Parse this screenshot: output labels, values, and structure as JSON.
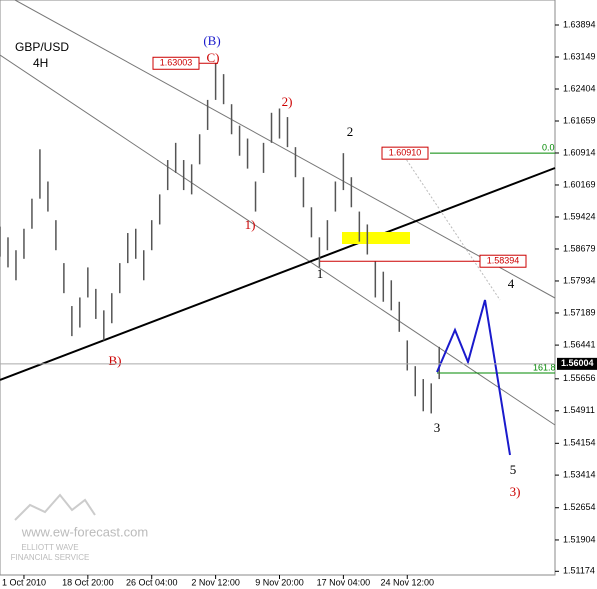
{
  "chart_data": {
    "type": "hilo",
    "title": "GBP/USD",
    "subtitle": "4H",
    "x": [
      0,
      2,
      4,
      6,
      8,
      10,
      12,
      14,
      16,
      18,
      20,
      22,
      24,
      26,
      28,
      30,
      32,
      34,
      36,
      38,
      40,
      42,
      44,
      46,
      48,
      50,
      52,
      54,
      56,
      58,
      60,
      62,
      64,
      66,
      68,
      70,
      72,
      74,
      76,
      78,
      80,
      82,
      84,
      86,
      88,
      90,
      92,
      94,
      96,
      98,
      100,
      102,
      104,
      106,
      108,
      110
    ],
    "high": [
      1.592,
      1.5895,
      1.5865,
      1.5915,
      1.5985,
      1.61,
      1.6025,
      1.5935,
      1.5835,
      1.5735,
      1.5755,
      1.5825,
      1.5775,
      1.5725,
      1.5765,
      1.5835,
      1.5905,
      1.5915,
      1.5865,
      1.5935,
      1.5995,
      1.6075,
      1.6115,
      1.6075,
      1.6065,
      1.6135,
      1.6215,
      1.63,
      1.6275,
      1.6205,
      1.6155,
      1.6125,
      1.6025,
      1.6115,
      1.6185,
      1.6195,
      1.6175,
      1.6105,
      1.6035,
      1.5965,
      1.5895,
      1.5935,
      1.6025,
      1.6091,
      1.6035,
      1.5955,
      1.5925,
      1.5839,
      1.5815,
      1.5795,
      1.5745,
      1.5655,
      1.5595,
      1.5565,
      1.5555,
      1.564
    ],
    "low": [
      1.585,
      1.5825,
      1.5795,
      1.5845,
      1.5915,
      1.5985,
      1.5955,
      1.5865,
      1.5765,
      1.5665,
      1.5685,
      1.5755,
      1.5705,
      1.5655,
      1.5695,
      1.5765,
      1.5835,
      1.5845,
      1.5795,
      1.5865,
      1.5925,
      1.6005,
      1.6045,
      1.6005,
      1.5995,
      1.6065,
      1.6145,
      1.6215,
      1.6205,
      1.6135,
      1.6085,
      1.6055,
      1.5955,
      1.6045,
      1.6115,
      1.6125,
      1.6105,
      1.6035,
      1.5965,
      1.5895,
      1.5825,
      1.5865,
      1.5955,
      1.6005,
      1.5965,
      1.5885,
      1.5855,
      1.5755,
      1.5745,
      1.5725,
      1.5675,
      1.5585,
      1.5525,
      1.549,
      1.5485,
      1.5565
    ],
    "color": "#555555",
    "xlim": [
      0,
      139
    ],
    "xticks": [
      {
        "value": 6,
        "label": "1 Oct 2010"
      },
      {
        "value": 22,
        "label": "18 Oct 20:00"
      },
      {
        "value": 38,
        "label": "26 Oct 04:00"
      },
      {
        "value": 54,
        "label": "2 Nov 12:00"
      },
      {
        "value": 70,
        "label": "9 Nov 20:00"
      },
      {
        "value": 86,
        "label": "17 Nov 04:00"
      },
      {
        "value": 102,
        "label": "24 Nov 12:00"
      }
    ],
    "ylim": [
      1.51088,
      1.64476
    ],
    "yticks": [
      1.63894,
      1.63149,
      1.62404,
      1.61659,
      1.60914,
      1.60169,
      1.59424,
      1.58679,
      1.57934,
      1.57189,
      1.56441,
      1.55656,
      1.54911,
      1.54154,
      1.53414,
      1.52654,
      1.51904,
      1.51174
    ],
    "levels": [
      {
        "value": 1.63003,
        "label": "1.63003"
      },
      {
        "value": 1.6091,
        "label": "1.60910"
      },
      {
        "value": 1.58394,
        "label": "1.58394"
      }
    ],
    "last_price": 1.56004,
    "fib_labels": [
      "0.0",
      "161.8"
    ],
    "waves": [
      "(B)",
      "C)",
      "2)",
      "2",
      "1)",
      "1",
      "B)",
      "3",
      "4",
      "5",
      "3)"
    ],
    "watermark": {
      "site": "www.ew-forecast.com",
      "line1": "ELLIOTT WAVE",
      "line2": "FINANCIAL SERVICE"
    }
  }
}
